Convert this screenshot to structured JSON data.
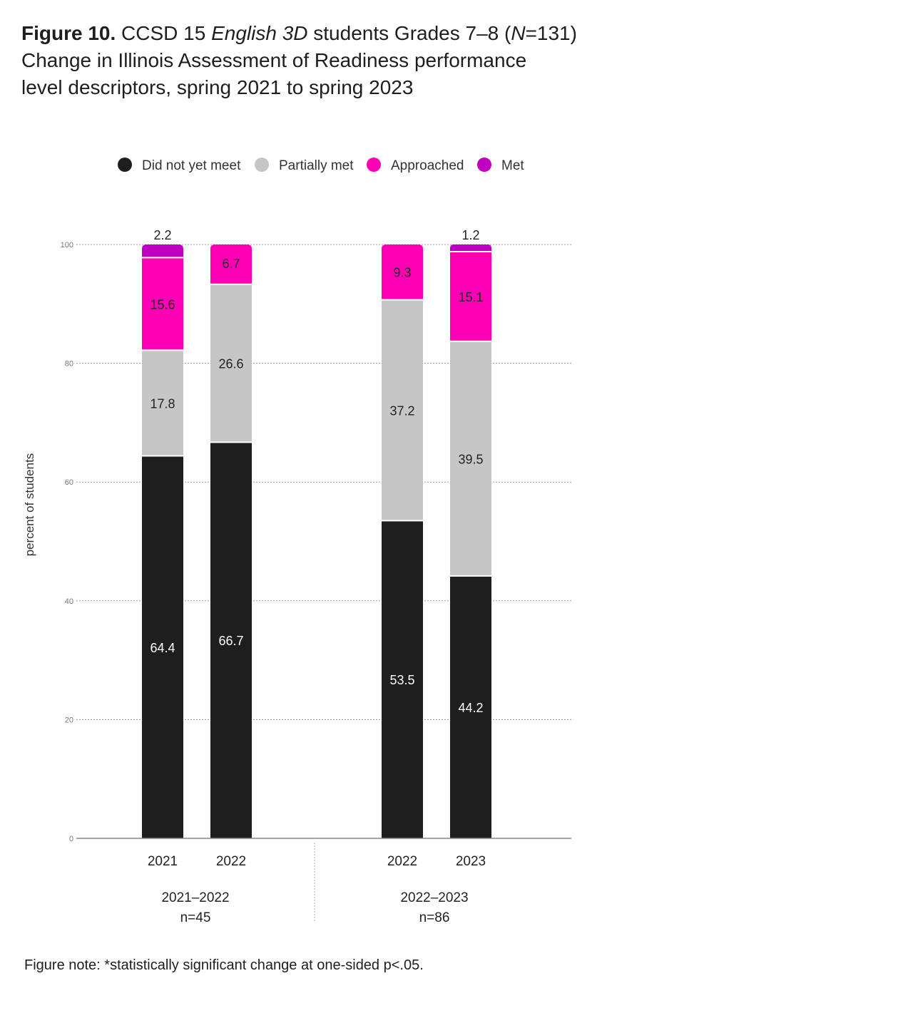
{
  "title": {
    "figure_label": "Figure 10.",
    "part1": "CCSD 15",
    "italic1": "English 3D",
    "part2": "students Grades 7–8 (",
    "italic2": "N",
    "part3": "=131)",
    "line2": "Change in Illinois Assessment of Readiness performance",
    "line3": "level descriptors, spring 2021 to spring 2023"
  },
  "note": "Figure note: *statistically significant change at one-sided p<.05.",
  "chart_data": {
    "type": "bar",
    "stacked": true,
    "ylabel": "percent of students",
    "ylim": [
      0,
      100
    ],
    "yticks": [
      0,
      20,
      40,
      60,
      80,
      100
    ],
    "grid": true,
    "legend_position": "top",
    "categories": [
      "2021",
      "2022",
      "2022",
      "2023"
    ],
    "groups": [
      {
        "label": "2021–2022",
        "sublabel": "n=45",
        "categories": [
          0,
          1
        ]
      },
      {
        "label": "2022–2023",
        "sublabel": "n=86",
        "categories": [
          2,
          3
        ]
      }
    ],
    "series": [
      {
        "name": "Did not yet meet",
        "color": "#1e1e1e",
        "label_color": "#ffffff",
        "values": [
          64.4,
          66.7,
          53.5,
          44.2
        ]
      },
      {
        "name": "Partially met",
        "color": "#c6c6c6",
        "label_color": "#222222",
        "values": [
          17.8,
          26.6,
          37.2,
          39.5
        ]
      },
      {
        "name": "Approached",
        "color": "#ff00b4",
        "label_color": "#222222",
        "values": [
          15.6,
          6.7,
          9.3,
          15.1
        ]
      },
      {
        "name": "Met",
        "color": "#c000c0",
        "label_color": "#222222",
        "values": [
          2.2,
          null,
          null,
          1.2
        ]
      }
    ]
  }
}
